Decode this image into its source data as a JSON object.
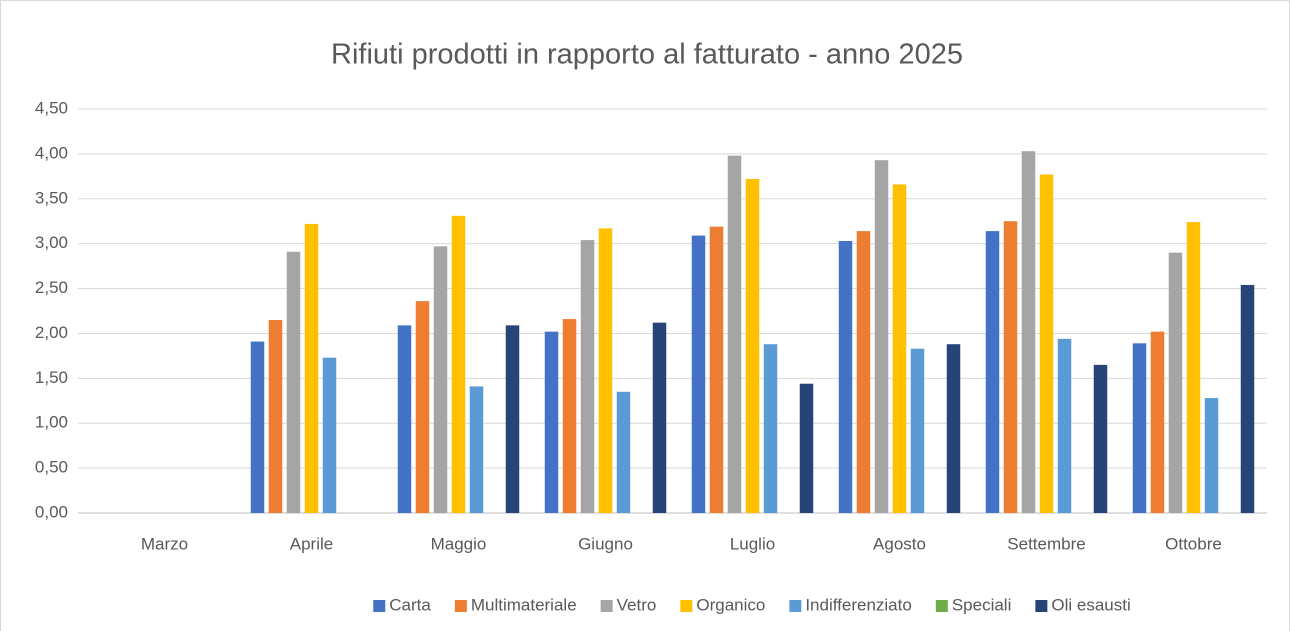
{
  "chart_data": {
    "type": "bar",
    "title": "Rifiuti prodotti in rapporto al fatturato - anno 2025",
    "categories": [
      "Marzo",
      "Aprile",
      "Maggio",
      "Giugno",
      "Luglio",
      "Agosto",
      "Settembre",
      "Ottobre"
    ],
    "series": [
      {
        "name": "Carta",
        "color": "#4472c4",
        "values": [
          null,
          1.91,
          2.09,
          2.02,
          3.09,
          3.03,
          3.14,
          1.89
        ]
      },
      {
        "name": "Multimateriale",
        "color": "#ed7d31",
        "values": [
          null,
          2.15,
          2.36,
          2.16,
          3.19,
          3.14,
          3.25,
          2.02
        ]
      },
      {
        "name": "Vetro",
        "color": "#a5a5a5",
        "values": [
          null,
          2.91,
          2.97,
          3.04,
          3.98,
          3.93,
          4.03,
          2.9
        ]
      },
      {
        "name": "Organico",
        "color": "#ffc000",
        "values": [
          null,
          3.22,
          3.31,
          3.17,
          3.72,
          3.66,
          3.77,
          3.24
        ]
      },
      {
        "name": "Indifferenziato",
        "color": "#5b9bd5",
        "values": [
          null,
          1.73,
          1.41,
          1.35,
          1.88,
          1.83,
          1.94,
          1.28
        ]
      },
      {
        "name": "Speciali",
        "color": "#70ad47",
        "values": [
          null,
          null,
          null,
          null,
          null,
          null,
          null,
          null
        ]
      },
      {
        "name": "Oli esausti",
        "color": "#264478",
        "values": [
          null,
          null,
          2.09,
          2.12,
          1.44,
          1.88,
          1.65,
          2.54
        ]
      }
    ],
    "ylim": [
      0,
      4.5
    ],
    "yticks": [
      {
        "value": 0,
        "label": "0,00"
      },
      {
        "value": 0.5,
        "label": "0,50"
      },
      {
        "value": 1,
        "label": "1,00"
      },
      {
        "value": 1.5,
        "label": "1,50"
      },
      {
        "value": 2,
        "label": "2,00"
      },
      {
        "value": 2.5,
        "label": "2,50"
      },
      {
        "value": 3,
        "label": "3,00"
      },
      {
        "value": 3.5,
        "label": "3,50"
      },
      {
        "value": 4,
        "label": "4,00"
      },
      {
        "value": 4.5,
        "label": "4,50"
      }
    ],
    "grid": true,
    "legend": "bottom"
  }
}
